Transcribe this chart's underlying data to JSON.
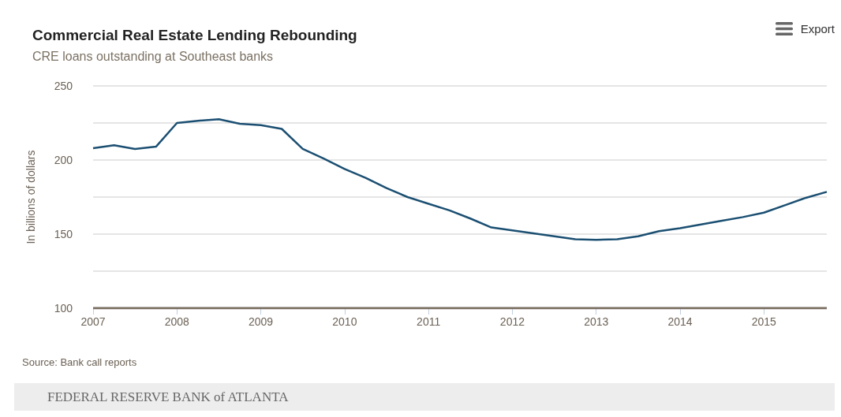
{
  "chart_data": {
    "type": "line",
    "title": "Commercial Real Estate Lending Rebounding",
    "subtitle": "CRE loans outstanding at Southeast banks",
    "ylabel": "In billions of dollars",
    "annotations": [
      "Source: Bank call reports",
      "Export",
      "FEDERAL RESERVE BANK of ATLANTA"
    ],
    "x": [
      2007,
      2007.25,
      2007.5,
      2007.75,
      2008,
      2008.25,
      2008.5,
      2008.75,
      2009,
      2009.25,
      2009.5,
      2009.75,
      2010,
      2010.25,
      2010.5,
      2010.75,
      2011,
      2011.25,
      2011.5,
      2011.75,
      2012,
      2012.25,
      2012.5,
      2012.75,
      2013,
      2013.25,
      2013.5,
      2013.75,
      2014,
      2014.25,
      2014.5,
      2014.75,
      2015,
      2015.25,
      2015.5,
      2015.75
    ],
    "series": [
      {
        "color": "#1b4f72",
        "values": [
          208,
          210,
          207.5,
          209,
          225,
          226.5,
          227.5,
          224.5,
          223.5,
          221,
          207.5,
          201,
          194,
          188,
          181,
          175,
          170.5,
          166,
          160.5,
          154.5,
          152.5,
          150.5,
          148.5,
          146.5,
          146.2,
          146.5,
          148.5,
          152,
          154,
          156.5,
          159,
          161.5,
          164.5,
          169.5,
          174.5,
          178.5
        ]
      }
    ],
    "xlim": [
      2007,
      2015.75
    ],
    "xticks": [
      2007,
      2008,
      2009,
      2010,
      2011,
      2012,
      2013,
      2014,
      2015
    ],
    "ylim": [
      100,
      250
    ],
    "yticks": [
      100,
      {
        "value": 125,
        "label": null
      },
      150,
      {
        "value": 175,
        "label": null
      },
      200,
      {
        "value": 225,
        "label": null
      },
      250
    ],
    "grid": "y",
    "marker": "none",
    "line_style": "solid"
  }
}
